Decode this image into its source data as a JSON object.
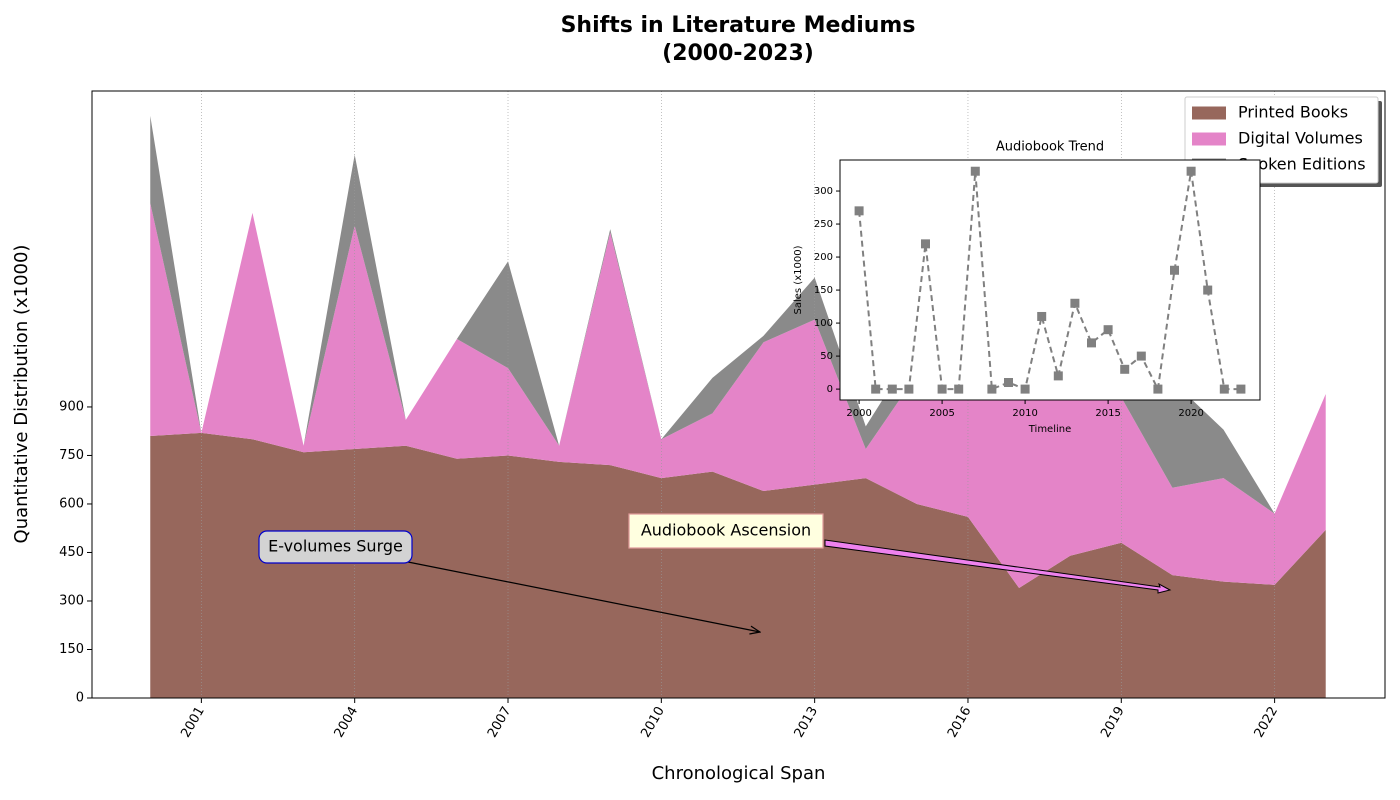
{
  "chart_data": [
    {
      "type": "area",
      "title": [
        "Shifts in Literature Mediums",
        "(2000-2023)"
      ],
      "x_label": "Chronological Span",
      "y_label": "Quantitative Distribution (x1000)",
      "x": [
        2000,
        2001,
        2002,
        2003,
        2004,
        2005,
        2006,
        2007,
        2008,
        2009,
        2010,
        2011,
        2012,
        2013,
        2014,
        2015,
        2016,
        2017,
        2018,
        2019,
        2020,
        2021,
        2022,
        2023
      ],
      "series": [
        {
          "name": "Printed Books",
          "color": "#97675c",
          "values": [
            810,
            820,
            800,
            760,
            770,
            780,
            740,
            750,
            730,
            720,
            680,
            700,
            640,
            660,
            680,
            600,
            560,
            340,
            440,
            480,
            380,
            360,
            350,
            520
          ]
        },
        {
          "name": "Digital Volumes",
          "color": "#e484c8",
          "values": [
            720,
            0,
            700,
            20,
            690,
            80,
            370,
            270,
            50,
            720,
            120,
            180,
            460,
            510,
            90,
            400,
            500,
            600,
            520,
            450,
            270,
            320,
            220,
            420
          ]
        },
        {
          "name": "Spoken Editions",
          "color": "#8a8a8a",
          "values": [
            270,
            0,
            0,
            0,
            220,
            0,
            0,
            330,
            0,
            10,
            0,
            110,
            20,
            130,
            70,
            90,
            30,
            50,
            0,
            180,
            330,
            150,
            0,
            0
          ]
        }
      ],
      "xlim": [
        1998.86,
        2024.16
      ],
      "ylim": [
        0,
        1877
      ],
      "xticks": [
        2001,
        2004,
        2007,
        2010,
        2013,
        2016,
        2019,
        2022
      ],
      "yticks": [
        0,
        150,
        300,
        450,
        600,
        750,
        900
      ],
      "grid": true,
      "legend": "upper right",
      "annotations": [
        "E-volumes Surge",
        "Audiobook Ascension"
      ]
    },
    {
      "type": "line",
      "title": "Audiobook Trend",
      "x_label": "Timeline",
      "y_label": "Sales (x1000)",
      "x": [
        2000,
        2001,
        2002,
        2003,
        2004,
        2005,
        2006,
        2007,
        2008,
        2009,
        2010,
        2011,
        2012,
        2013,
        2014,
        2015,
        2016,
        2017,
        2018,
        2019,
        2020,
        2021,
        2022,
        2023
      ],
      "series": [
        {
          "name": "Spoken Editions",
          "color": "#808080",
          "values": [
            270,
            0,
            0,
            0,
            220,
            0,
            0,
            330,
            0,
            10,
            0,
            110,
            20,
            130,
            70,
            90,
            30,
            50,
            0,
            180,
            330,
            150,
            0,
            0
          ]
        }
      ],
      "xlim": [
        1998.85,
        2024.15
      ],
      "ylim": [
        -16.5,
        347
      ],
      "xticks": [
        2000,
        2005,
        2010,
        2015,
        2020
      ],
      "yticks": [
        0,
        50,
        100,
        150,
        200,
        250,
        300
      ]
    }
  ]
}
